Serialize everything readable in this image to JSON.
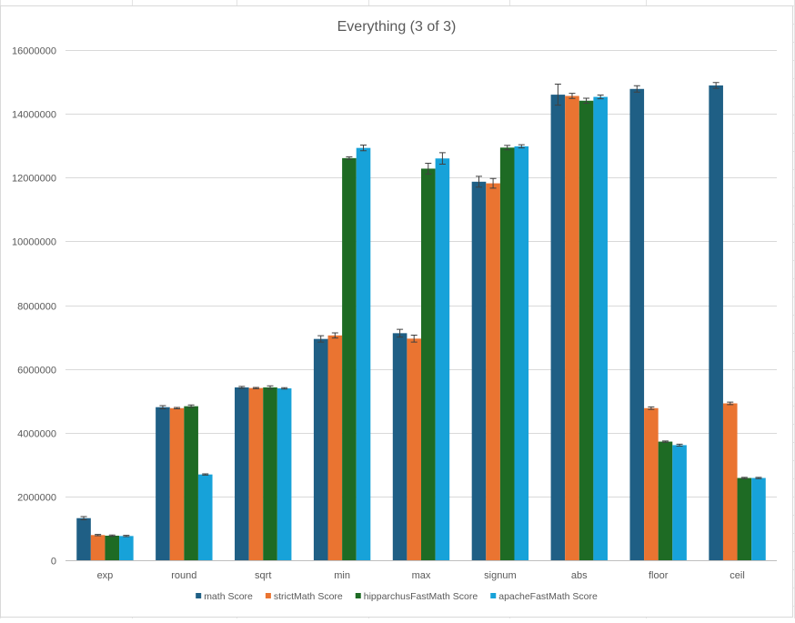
{
  "chart_data": {
    "type": "bar",
    "title": "Everything (3 of 3)",
    "xlabel": "",
    "ylabel": "",
    "ylim": [
      0,
      16000000
    ],
    "yticks": [
      0,
      2000000,
      4000000,
      6000000,
      8000000,
      10000000,
      12000000,
      14000000,
      16000000
    ],
    "ytick_labels": [
      "0",
      "2000000",
      "4000000",
      "6000000",
      "8000000",
      "10000000",
      "12000000",
      "14000000",
      "16000000"
    ],
    "grid": true,
    "legend_position": "bottom",
    "categories": [
      "exp",
      "round",
      "sqrt",
      "min",
      "max",
      "signum",
      "abs",
      "floor",
      "ceil"
    ],
    "series": [
      {
        "name": "math Score",
        "color": "#1f5f85",
        "values": [
          1320000,
          4800000,
          5420000,
          6940000,
          7120000,
          11870000,
          14600000,
          14780000,
          14890000
        ],
        "errors": [
          50000,
          50000,
          30000,
          100000,
          120000,
          170000,
          330000,
          100000,
          90000
        ]
      },
      {
        "name": "strictMath Score",
        "color": "#ea7431",
        "values": [
          790000,
          4770000,
          5400000,
          7050000,
          6950000,
          11820000,
          14560000,
          4770000,
          4920000
        ],
        "errors": [
          20000,
          20000,
          20000,
          80000,
          110000,
          150000,
          80000,
          40000,
          40000
        ]
      },
      {
        "name": "hipparchusFastMath Score",
        "color": "#1e6b24",
        "values": [
          770000,
          4830000,
          5420000,
          12610000,
          12280000,
          12940000,
          14410000,
          3720000,
          2580000
        ],
        "errors": [
          20000,
          40000,
          50000,
          40000,
          170000,
          70000,
          80000,
          20000,
          20000
        ]
      },
      {
        "name": "apacheFastMath Score",
        "color": "#17a2d9",
        "values": [
          760000,
          2690000,
          5390000,
          12930000,
          12600000,
          12980000,
          14530000,
          3610000,
          2580000
        ],
        "errors": [
          20000,
          20000,
          20000,
          90000,
          180000,
          50000,
          60000,
          30000,
          20000
        ]
      }
    ]
  }
}
